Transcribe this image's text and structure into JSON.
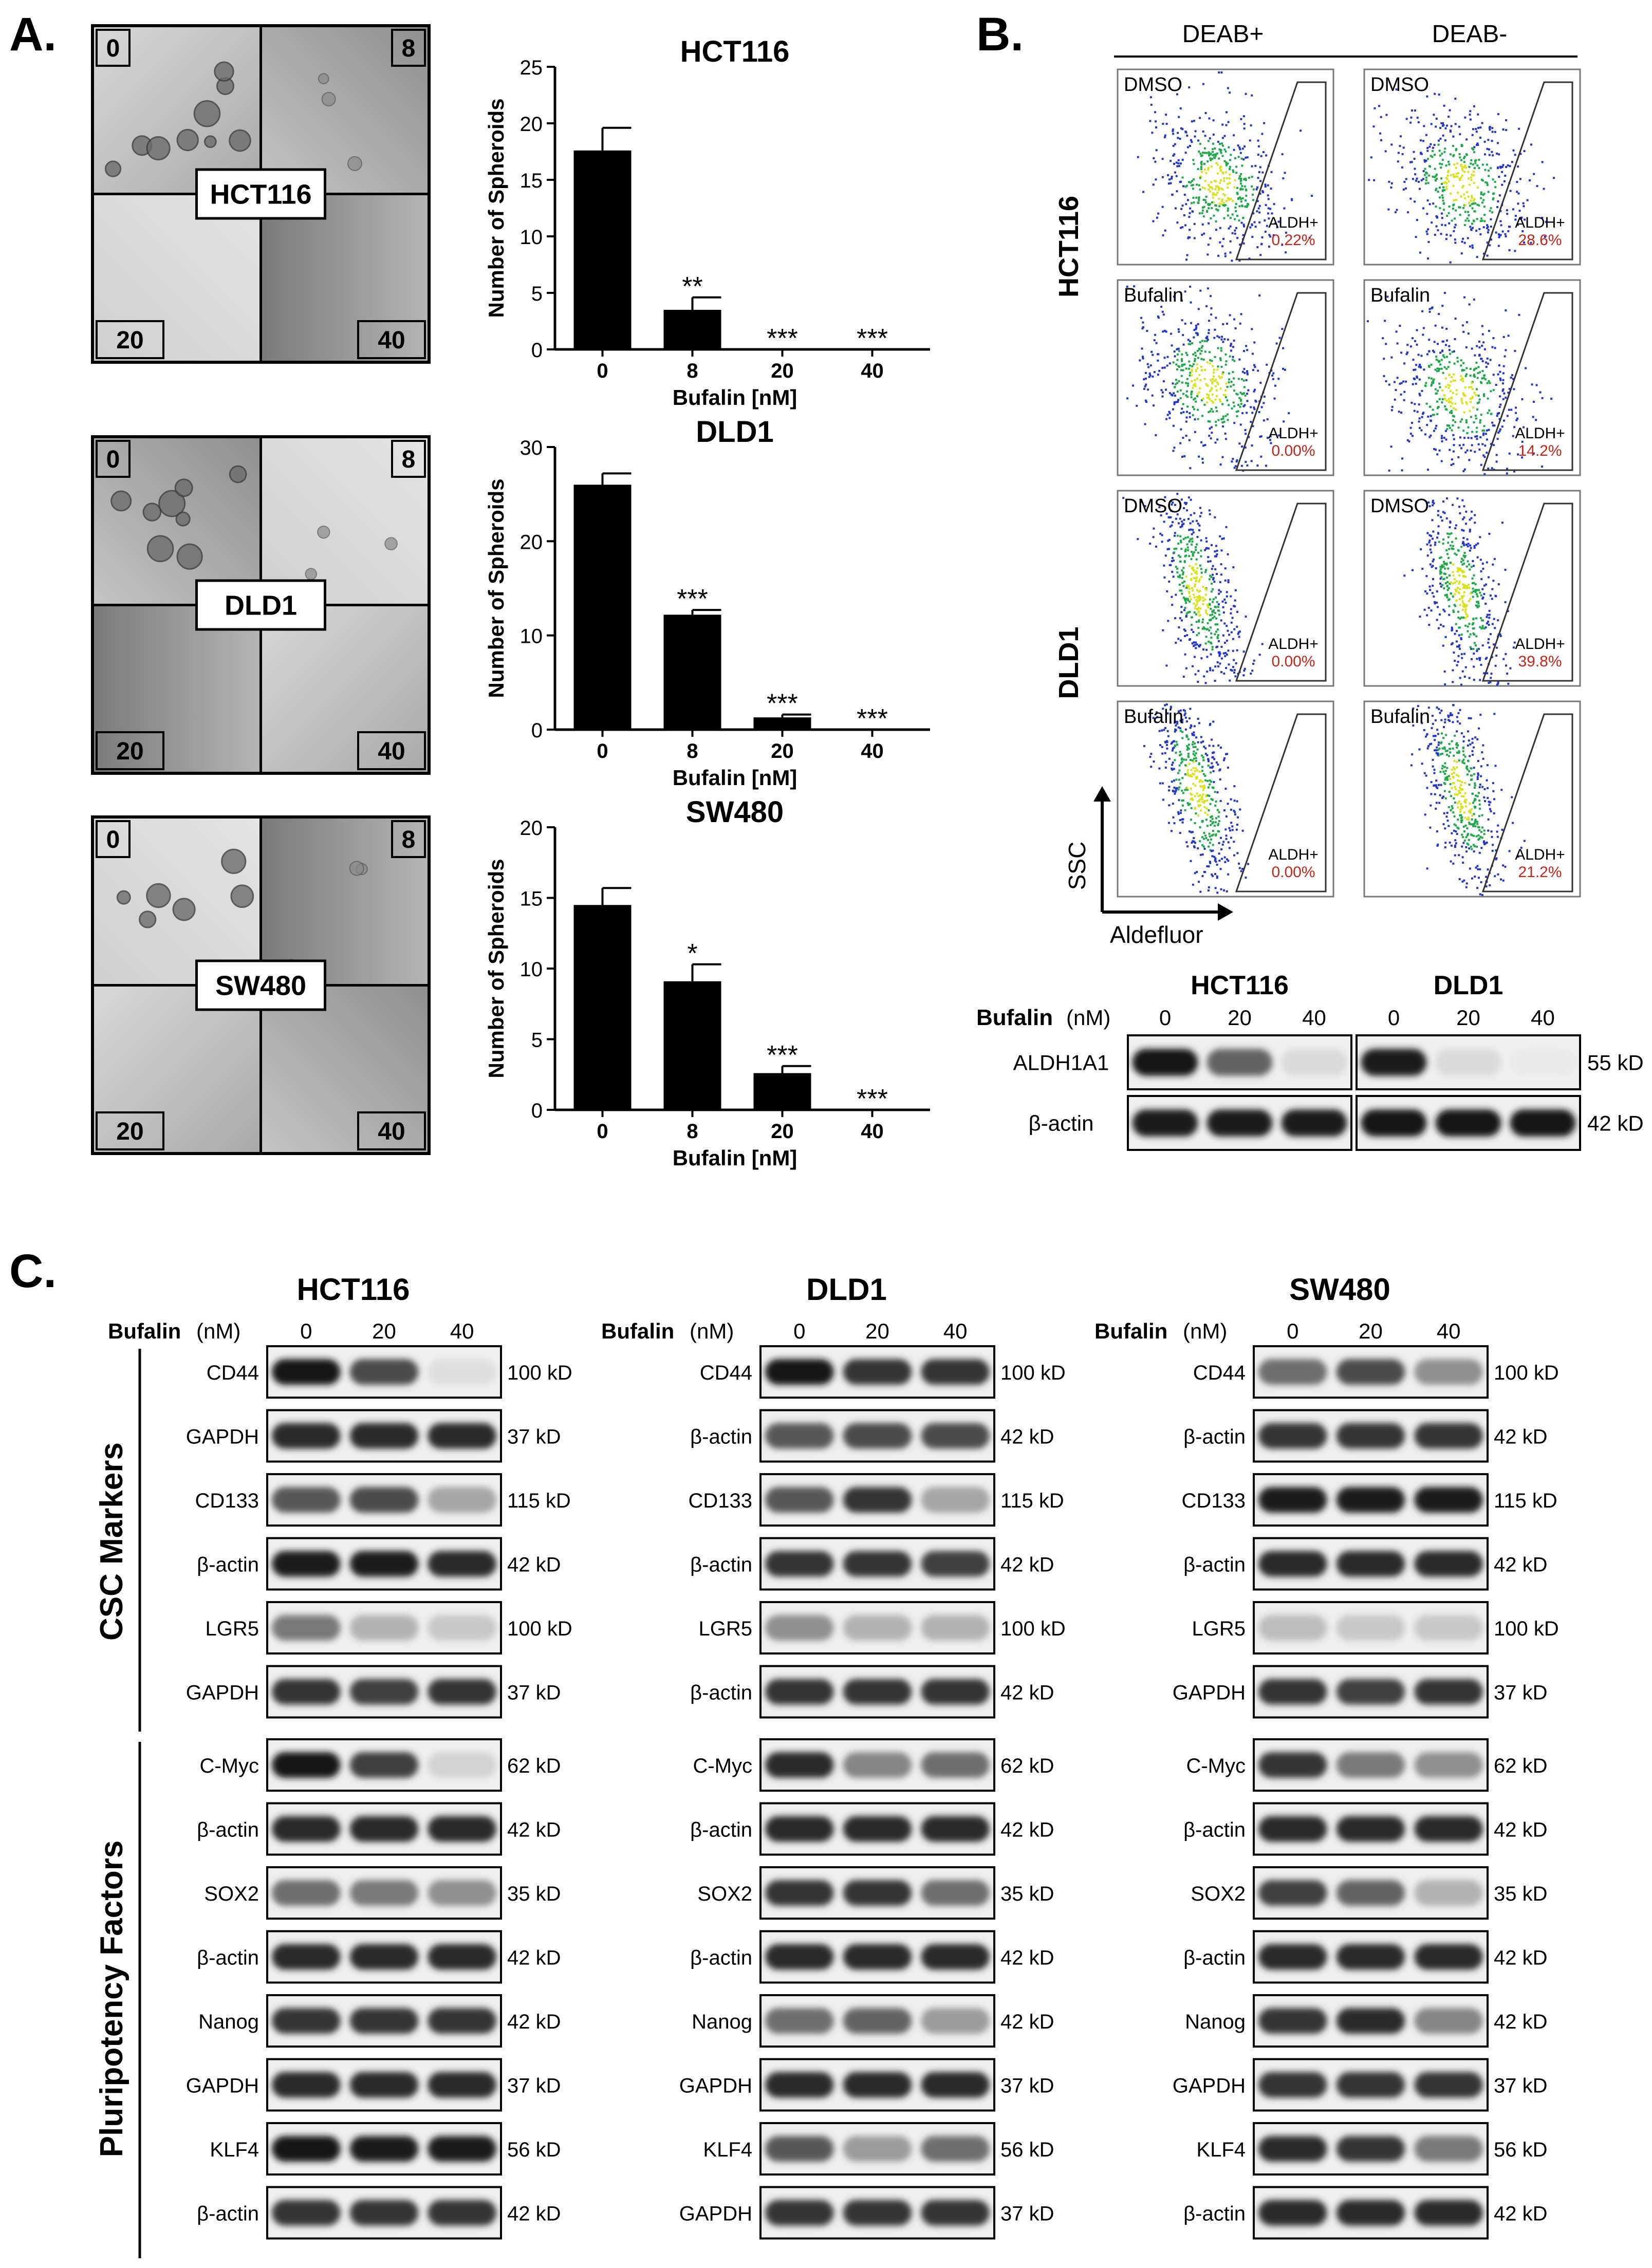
{
  "panel_labels": {
    "a": "A.",
    "b": "B.",
    "c": "C."
  },
  "panel_a": {
    "micrographs": [
      {
        "cell": "HCT116",
        "q": [
          "0",
          "8",
          "20",
          "40"
        ]
      },
      {
        "cell": "DLD1",
        "q": [
          "0",
          "8",
          "20",
          "40"
        ]
      },
      {
        "cell": "SW480",
        "q": [
          "0",
          "8",
          "20",
          "40"
        ]
      }
    ]
  },
  "chart_data": [
    {
      "type": "bar",
      "title": "HCT116",
      "xlabel": "Bufalin [nM]",
      "ylabel": "Number of Spheroids",
      "categories": [
        "0",
        "8",
        "20",
        "40"
      ],
      "values": [
        17.6,
        3.5,
        0,
        0
      ],
      "errors": [
        2.0,
        1.1,
        0,
        0
      ],
      "significance": [
        "",
        "**",
        "***",
        "***"
      ],
      "ylim": [
        0,
        25
      ],
      "yticks": [
        "0",
        "5",
        "10",
        "15",
        "20",
        "25"
      ]
    },
    {
      "type": "bar",
      "title": "DLD1",
      "xlabel": "Bufalin [nM]",
      "ylabel": "Number of Spheroids",
      "categories": [
        "0",
        "8",
        "20",
        "40"
      ],
      "values": [
        26.0,
        12.2,
        1.3,
        0
      ],
      "errors": [
        1.2,
        0.5,
        0.3,
        0
      ],
      "significance": [
        "",
        "***",
        "***",
        "***"
      ],
      "ylim": [
        0,
        30
      ],
      "yticks": [
        "0",
        "10",
        "20",
        "30"
      ]
    },
    {
      "type": "bar",
      "title": "SW480",
      "xlabel": "Bufalin [nM]",
      "ylabel": "Number of Spheroids",
      "categories": [
        "0",
        "8",
        "20",
        "40"
      ],
      "values": [
        14.5,
        9.1,
        2.6,
        0
      ],
      "errors": [
        1.2,
        1.2,
        0.5,
        0
      ],
      "significance": [
        "",
        "*",
        "***",
        "***"
      ],
      "ylim": [
        0,
        20
      ],
      "yticks": [
        "0",
        "5",
        "10",
        "15",
        "20"
      ]
    }
  ],
  "panel_b": {
    "columns": [
      "DEAB+",
      "DEAB-"
    ],
    "row_groups": [
      "HCT116",
      "DLD1"
    ],
    "gate_label": "ALDH+",
    "plots": [
      {
        "treat": "DMSO",
        "pct": "0.22%",
        "shape": "wide",
        "cx": 2.55,
        "cy": 0.58
      },
      {
        "treat": "DMSO",
        "pct": "28.6%",
        "shape": "wide",
        "cx": 2.45,
        "cy": 0.58
      },
      {
        "treat": "Bufalin",
        "pct": "0.00%",
        "shape": "wide",
        "cx": 2.3,
        "cy": 0.52
      },
      {
        "treat": "Bufalin",
        "pct": "14.2%",
        "shape": "wide",
        "cx": 2.4,
        "cy": 0.58
      },
      {
        "treat": "DMSO",
        "pct": "0.00%",
        "shape": "narrow",
        "cx": 2.0,
        "cy": 0.5
      },
      {
        "treat": "DMSO",
        "pct": "39.8%",
        "shape": "narrow",
        "cx": 2.45,
        "cy": 0.5
      },
      {
        "treat": "Bufalin",
        "pct": "0.00%",
        "shape": "narrow",
        "cx": 2.0,
        "cy": 0.45
      },
      {
        "treat": "Bufalin",
        "pct": "21.2%",
        "shape": "narrow",
        "cx": 2.45,
        "cy": 0.45
      }
    ],
    "y_axis_label": "SSC",
    "x_axis_label": "Aldefluor",
    "blot": {
      "groups": [
        "HCT116",
        "DLD1"
      ],
      "treat_label": "Bufalin",
      "unit": "(nM)",
      "doses": [
        "0",
        "20",
        "40"
      ],
      "rows": [
        {
          "label": "ALDH1A1",
          "kd": "55 kD",
          "hct": [
            1.0,
            0.65,
            0.12
          ],
          "dld": [
            0.95,
            0.12,
            0.05
          ]
        },
        {
          "label": "β-actin",
          "kd": "42 kD",
          "hct": [
            0.95,
            0.95,
            0.95
          ],
          "dld": [
            1.0,
            1.0,
            1.0
          ]
        }
      ]
    }
  },
  "panel_c": {
    "treat_label": "Bufalin",
    "unit": "(nM)",
    "doses": [
      "0",
      "20",
      "40"
    ],
    "group_labels": [
      "CSC Markers",
      "Pluripotency Factors"
    ],
    "columns": [
      {
        "cell": "HCT116",
        "rows": [
          {
            "label": "CD44",
            "kd": "100 kD",
            "b": [
              1.0,
              0.75,
              0.1
            ]
          },
          {
            "label": "GAPDH",
            "kd": "37 kD",
            "b": [
              0.9,
              0.9,
              0.9
            ]
          },
          {
            "label": "CD133",
            "kd": "115 kD",
            "b": [
              0.7,
              0.75,
              0.35
            ]
          },
          {
            "label": "β-actin",
            "kd": "42 kD",
            "b": [
              0.95,
              0.95,
              0.9
            ]
          },
          {
            "label": "LGR5",
            "kd": "100 kD",
            "b": [
              0.55,
              0.3,
              0.2
            ]
          },
          {
            "label": "GAPDH",
            "kd": "37 kD",
            "b": [
              0.85,
              0.8,
              0.85
            ]
          },
          {
            "label": "C-Myc",
            "kd": "62 kD",
            "b": [
              1.0,
              0.8,
              0.15
            ]
          },
          {
            "label": "β-actin",
            "kd": "42 kD",
            "b": [
              0.9,
              0.9,
              0.9
            ]
          },
          {
            "label": "SOX2",
            "kd": "35 kD",
            "b": [
              0.6,
              0.55,
              0.45
            ]
          },
          {
            "label": "β-actin",
            "kd": "42 kD",
            "b": [
              0.9,
              0.9,
              0.9
            ]
          },
          {
            "label": "Nanog",
            "kd": "42 kD",
            "b": [
              0.85,
              0.85,
              0.85
            ]
          },
          {
            "label": "GAPDH",
            "kd": "37 kD",
            "b": [
              0.9,
              0.9,
              0.9
            ]
          },
          {
            "label": "KLF4",
            "kd": "56 kD",
            "b": [
              1.0,
              0.95,
              0.95
            ]
          },
          {
            "label": "β-actin",
            "kd": "42 kD",
            "b": [
              0.85,
              0.85,
              0.85
            ]
          }
        ]
      },
      {
        "cell": "DLD1",
        "rows": [
          {
            "label": "CD44",
            "kd": "100 kD",
            "b": [
              1.0,
              0.85,
              0.85
            ]
          },
          {
            "label": "β-actin",
            "kd": "42 kD",
            "b": [
              0.7,
              0.75,
              0.75
            ]
          },
          {
            "label": "CD133",
            "kd": "115 kD",
            "b": [
              0.7,
              0.85,
              0.35
            ]
          },
          {
            "label": "β-actin",
            "kd": "42 kD",
            "b": [
              0.85,
              0.85,
              0.8
            ]
          },
          {
            "label": "LGR5",
            "kd": "100 kD",
            "b": [
              0.45,
              0.3,
              0.3
            ]
          },
          {
            "label": "β-actin",
            "kd": "42 kD",
            "b": [
              0.85,
              0.85,
              0.85
            ]
          },
          {
            "label": "C-Myc",
            "kd": "62 kD",
            "b": [
              0.9,
              0.5,
              0.6
            ]
          },
          {
            "label": "β-actin",
            "kd": "42 kD",
            "b": [
              0.9,
              0.9,
              0.9
            ]
          },
          {
            "label": "SOX2",
            "kd": "35 kD",
            "b": [
              0.85,
              0.85,
              0.6
            ]
          },
          {
            "label": "β-actin",
            "kd": "42 kD",
            "b": [
              0.9,
              0.9,
              0.9
            ]
          },
          {
            "label": "Nanog",
            "kd": "42 kD",
            "b": [
              0.6,
              0.65,
              0.4
            ]
          },
          {
            "label": "GAPDH",
            "kd": "37 kD",
            "b": [
              0.9,
              0.9,
              0.9
            ]
          },
          {
            "label": "KLF4",
            "kd": "56 kD",
            "b": [
              0.7,
              0.4,
              0.6
            ]
          },
          {
            "label": "GAPDH",
            "kd": "37 kD",
            "b": [
              0.85,
              0.85,
              0.85
            ]
          }
        ]
      },
      {
        "cell": "SW480",
        "rows": [
          {
            "label": "CD44",
            "kd": "100 kD",
            "b": [
              0.6,
              0.75,
              0.45
            ]
          },
          {
            "label": "β-actin",
            "kd": "42 kD",
            "b": [
              0.85,
              0.85,
              0.85
            ]
          },
          {
            "label": "CD133",
            "kd": "115 kD",
            "b": [
              0.95,
              0.95,
              0.95
            ]
          },
          {
            "label": "β-actin",
            "kd": "42 kD",
            "b": [
              0.9,
              0.9,
              0.9
            ]
          },
          {
            "label": "LGR5",
            "kd": "100 kD",
            "b": [
              0.25,
              0.2,
              0.2
            ]
          },
          {
            "label": "GAPDH",
            "kd": "37 kD",
            "b": [
              0.85,
              0.8,
              0.85
            ]
          },
          {
            "label": "C-Myc",
            "kd": "62 kD",
            "b": [
              0.85,
              0.55,
              0.45
            ]
          },
          {
            "label": "β-actin",
            "kd": "42 kD",
            "b": [
              0.9,
              0.9,
              0.9
            ]
          },
          {
            "label": "SOX2",
            "kd": "35 kD",
            "b": [
              0.8,
              0.65,
              0.3
            ]
          },
          {
            "label": "β-actin",
            "kd": "42 kD",
            "b": [
              0.9,
              0.9,
              0.9
            ]
          },
          {
            "label": "Nanog",
            "kd": "42 kD",
            "b": [
              0.85,
              0.9,
              0.5
            ]
          },
          {
            "label": "GAPDH",
            "kd": "37 kD",
            "b": [
              0.85,
              0.85,
              0.85
            ]
          },
          {
            "label": "KLF4",
            "kd": "56 kD",
            "b": [
              0.9,
              0.85,
              0.55
            ]
          },
          {
            "label": "β-actin",
            "kd": "42 kD",
            "b": [
              0.9,
              0.9,
              0.9
            ]
          }
        ]
      }
    ]
  },
  "colors": {
    "gate_pct": "#c0281e",
    "bar": "#000000",
    "dot_hi": "#d9e21b",
    "dot_mid": "#1fa84a",
    "dot_lo": "#2436c8"
  }
}
